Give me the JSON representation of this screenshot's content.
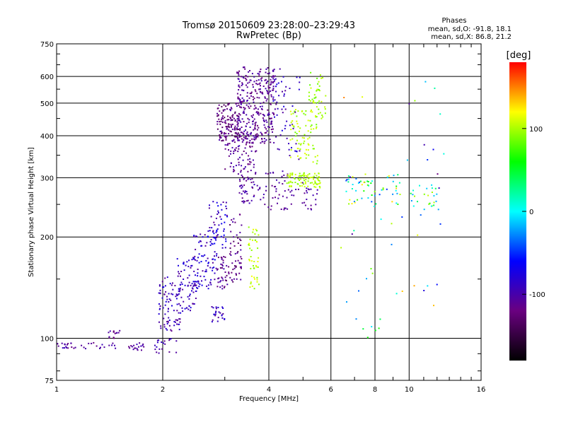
{
  "chart_data": {
    "type": "scatter",
    "title": "Tromsø 20150609 23:28:00–23:29:43",
    "subtitle": "RwPretec (Bp)",
    "xlabel": "Frequency [MHz]",
    "ylabel": "Stationary phase Virtual Height [km]",
    "x_scale": "log",
    "y_scale": "log",
    "xlim": [
      1,
      16
    ],
    "ylim": [
      75,
      750
    ],
    "x_ticks": [
      1,
      2,
      4,
      6,
      8,
      10,
      16
    ],
    "y_ticks": [
      75,
      100,
      200,
      300,
      400,
      500,
      600,
      750
    ],
    "grid": true,
    "stats": {
      "heading": "Phases",
      "line_o": "mean, sd,O: -91.8, 18.1",
      "line_x": "mean, sd,X:  86.8, 21.2"
    },
    "colorbar": {
      "label": "[deg]",
      "range": [
        -180,
        180
      ],
      "ticks": [
        -100,
        0,
        100
      ],
      "colors": [
        "#000000",
        "#6a0080",
        "#0000ff",
        "#00ffff",
        "#00ff00",
        "#ffff00",
        "#ff0000"
      ]
    },
    "clusters": [
      {
        "x": [
          1.0,
          1.5
        ],
        "y": [
          93,
          97
        ],
        "n": 35,
        "phase": [
          -120,
          -90
        ]
      },
      {
        "x": [
          1.4,
          1.55
        ],
        "y": [
          100,
          106
        ],
        "n": 14,
        "phase": [
          -125,
          -95
        ]
      },
      {
        "x": [
          1.6,
          1.8
        ],
        "y": [
          92,
          98
        ],
        "n": 18,
        "phase": [
          -120,
          -90
        ]
      },
      {
        "x": [
          1.9,
          2.2
        ],
        "y": [
          90,
          100
        ],
        "n": 20,
        "phase": [
          -115,
          -85
        ]
      },
      {
        "x": [
          1.95,
          2.25
        ],
        "y": [
          105,
          155
        ],
        "n": 90,
        "phase": [
          -115,
          -75
        ]
      },
      {
        "x": [
          2.2,
          2.55
        ],
        "y": [
          120,
          175
        ],
        "n": 80,
        "phase": [
          -110,
          -70
        ]
      },
      {
        "x": [
          2.45,
          2.85
        ],
        "y": [
          140,
          210
        ],
        "n": 80,
        "phase": [
          -110,
          -65
        ]
      },
      {
        "x": [
          2.7,
          3.05
        ],
        "y": [
          185,
          255
        ],
        "n": 50,
        "phase": [
          -115,
          -60
        ]
      },
      {
        "x": [
          2.75,
          3.0
        ],
        "y": [
          112,
          125
        ],
        "n": 25,
        "phase": [
          -110,
          -70
        ]
      },
      {
        "x": [
          2.85,
          3.1
        ],
        "y": [
          140,
          175
        ],
        "n": 40,
        "phase": [
          -130,
          -95
        ]
      },
      {
        "x": [
          3.1,
          3.35
        ],
        "y": [
          145,
          235
        ],
        "n": 55,
        "phase": [
          -135,
          -100
        ]
      },
      {
        "x": [
          2.85,
          3.3
        ],
        "y": [
          385,
          500
        ],
        "n": 140,
        "phase": [
          -140,
          -100
        ]
      },
      {
        "x": [
          3.0,
          3.7
        ],
        "y": [
          300,
          400
        ],
        "n": 90,
        "phase": [
          -125,
          -95
        ]
      },
      {
        "x": [
          3.25,
          4.15
        ],
        "y": [
          380,
          640
        ],
        "n": 320,
        "phase": [
          -125,
          -95
        ]
      },
      {
        "x": [
          3.3,
          3.65
        ],
        "y": [
          250,
          300
        ],
        "n": 40,
        "phase": [
          -120,
          -90
        ]
      },
      {
        "x": [
          3.7,
          4.6
        ],
        "y": [
          240,
          320
        ],
        "n": 45,
        "phase": [
          -120,
          -95
        ]
      },
      {
        "x": [
          4.1,
          4.9
        ],
        "y": [
          340,
          640
        ],
        "n": 60,
        "phase": [
          -110,
          -70
        ]
      },
      {
        "x": [
          4.5,
          5.5
        ],
        "y": [
          240,
          290
        ],
        "n": 30,
        "phase": [
          -115,
          -95
        ]
      },
      {
        "x": [
          3.5,
          3.75
        ],
        "y": [
          140,
          215
        ],
        "n": 45,
        "phase": [
          90,
          118
        ]
      },
      {
        "x": [
          4.5,
          5.6
        ],
        "y": [
          280,
          310
        ],
        "n": 90,
        "phase": [
          88,
          112
        ]
      },
      {
        "x": [
          4.6,
          5.5
        ],
        "y": [
          330,
          480
        ],
        "n": 80,
        "phase": [
          85,
          115
        ]
      },
      {
        "x": [
          5.2,
          5.8
        ],
        "y": [
          440,
          620
        ],
        "n": 45,
        "phase": [
          82,
          110
        ]
      },
      {
        "x": [
          6.6,
          9.5
        ],
        "y": [
          250,
          305
        ],
        "n": 55,
        "phase": [
          -60,
          140
        ]
      },
      {
        "x": [
          10.0,
          12.0
        ],
        "y": [
          240,
          290
        ],
        "n": 25,
        "phase": [
          -40,
          110
        ]
      },
      {
        "x": [
          6.2,
          12.6
        ],
        "y": [
          100,
          640
        ],
        "n": 50,
        "phase": [
          -120,
          150
        ]
      }
    ]
  }
}
